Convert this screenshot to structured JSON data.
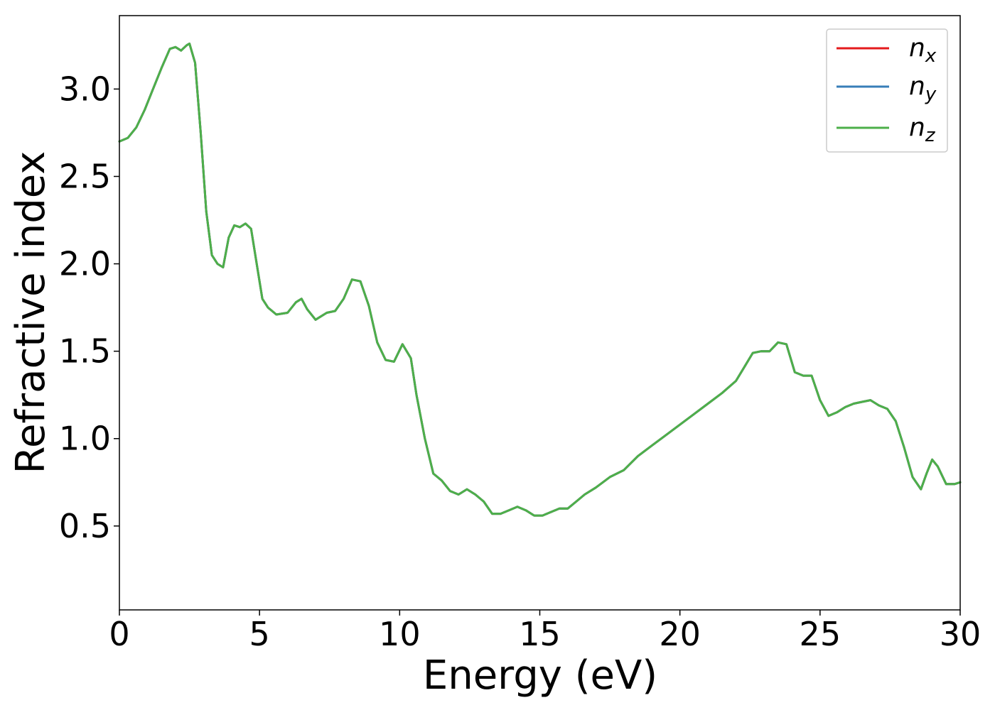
{
  "chart_data": {
    "type": "line",
    "xlabel": "Energy (eV)",
    "ylabel": "Refractive index",
    "xlim": [
      0,
      30
    ],
    "ylim": [
      0.02,
      3.42
    ],
    "xticks": [
      0,
      5,
      10,
      15,
      20,
      25,
      30
    ],
    "xtick_labels": [
      "0",
      "5",
      "10",
      "15",
      "20",
      "25",
      "30"
    ],
    "yticks": [
      0.5,
      1.0,
      1.5,
      2.0,
      2.5,
      3.0
    ],
    "ytick_labels": [
      "0.5",
      "1.0",
      "1.5",
      "2.0",
      "2.5",
      "3.0"
    ],
    "grid": false,
    "legend_position": "top-right",
    "x": [
      0,
      0.3,
      0.6,
      0.9,
      1.2,
      1.5,
      1.8,
      2.0,
      2.2,
      2.4,
      2.5,
      2.7,
      2.9,
      3.1,
      3.3,
      3.5,
      3.7,
      3.9,
      4.1,
      4.3,
      4.5,
      4.7,
      4.9,
      5.1,
      5.3,
      5.6,
      6.0,
      6.3,
      6.5,
      6.7,
      7.0,
      7.4,
      7.7,
      8.0,
      8.3,
      8.6,
      8.9,
      9.2,
      9.5,
      9.8,
      10.1,
      10.4,
      10.6,
      10.9,
      11.2,
      11.5,
      11.8,
      12.1,
      12.4,
      12.7,
      13.0,
      13.3,
      13.6,
      13.9,
      14.2,
      14.5,
      14.8,
      15.1,
      15.4,
      15.7,
      16.0,
      16.3,
      16.6,
      17.0,
      17.5,
      18.0,
      18.5,
      19.0,
      19.5,
      20.0,
      20.5,
      21.0,
      21.5,
      22.0,
      22.3,
      22.6,
      22.9,
      23.2,
      23.5,
      23.8,
      24.1,
      24.4,
      24.7,
      25.0,
      25.3,
      25.6,
      25.9,
      26.2,
      26.5,
      26.8,
      27.1,
      27.4,
      27.7,
      28.0,
      28.3,
      28.6,
      28.8,
      29.0,
      29.2,
      29.5,
      29.8,
      30.0
    ],
    "series": [
      {
        "name": "n",
        "subscript": "x",
        "color": "#e41a1c",
        "values": [
          2.7,
          2.72,
          2.78,
          2.88,
          3.0,
          3.12,
          3.23,
          3.24,
          3.22,
          3.25,
          3.26,
          3.15,
          2.75,
          2.3,
          2.05,
          2.0,
          1.98,
          2.15,
          2.22,
          2.21,
          2.23,
          2.2,
          2.0,
          1.8,
          1.75,
          1.71,
          1.72,
          1.78,
          1.8,
          1.74,
          1.68,
          1.72,
          1.73,
          1.8,
          1.91,
          1.9,
          1.76,
          1.55,
          1.45,
          1.44,
          1.54,
          1.46,
          1.25,
          1.0,
          0.8,
          0.76,
          0.7,
          0.68,
          0.71,
          0.68,
          0.64,
          0.57,
          0.57,
          0.59,
          0.61,
          0.59,
          0.56,
          0.56,
          0.58,
          0.6,
          0.6,
          0.64,
          0.68,
          0.72,
          0.78,
          0.82,
          0.9,
          0.96,
          1.02,
          1.08,
          1.14,
          1.2,
          1.26,
          1.33,
          1.41,
          1.49,
          1.5,
          1.5,
          1.55,
          1.54,
          1.38,
          1.36,
          1.36,
          1.22,
          1.13,
          1.15,
          1.18,
          1.2,
          1.21,
          1.22,
          1.19,
          1.17,
          1.1,
          0.95,
          0.78,
          0.71,
          0.8,
          0.88,
          0.84,
          0.74,
          0.74,
          0.75
        ]
      },
      {
        "name": "n",
        "subscript": "y",
        "color": "#377eb8",
        "values": [
          2.7,
          2.72,
          2.78,
          2.88,
          3.0,
          3.12,
          3.23,
          3.24,
          3.22,
          3.25,
          3.26,
          3.15,
          2.75,
          2.3,
          2.05,
          2.0,
          1.98,
          2.15,
          2.22,
          2.21,
          2.23,
          2.2,
          2.0,
          1.8,
          1.75,
          1.71,
          1.72,
          1.78,
          1.8,
          1.74,
          1.68,
          1.72,
          1.73,
          1.8,
          1.91,
          1.9,
          1.76,
          1.55,
          1.45,
          1.44,
          1.54,
          1.46,
          1.25,
          1.0,
          0.8,
          0.76,
          0.7,
          0.68,
          0.71,
          0.68,
          0.64,
          0.57,
          0.57,
          0.59,
          0.61,
          0.59,
          0.56,
          0.56,
          0.58,
          0.6,
          0.6,
          0.64,
          0.68,
          0.72,
          0.78,
          0.82,
          0.9,
          0.96,
          1.02,
          1.08,
          1.14,
          1.2,
          1.26,
          1.33,
          1.41,
          1.49,
          1.5,
          1.5,
          1.55,
          1.54,
          1.38,
          1.36,
          1.36,
          1.22,
          1.13,
          1.15,
          1.18,
          1.2,
          1.21,
          1.22,
          1.19,
          1.17,
          1.1,
          0.95,
          0.78,
          0.71,
          0.8,
          0.88,
          0.84,
          0.74,
          0.74,
          0.75
        ]
      },
      {
        "name": "n",
        "subscript": "z",
        "color": "#4daf4a",
        "values": [
          2.7,
          2.72,
          2.78,
          2.88,
          3.0,
          3.12,
          3.23,
          3.24,
          3.22,
          3.25,
          3.26,
          3.15,
          2.75,
          2.3,
          2.05,
          2.0,
          1.98,
          2.15,
          2.22,
          2.21,
          2.23,
          2.2,
          2.0,
          1.8,
          1.75,
          1.71,
          1.72,
          1.78,
          1.8,
          1.74,
          1.68,
          1.72,
          1.73,
          1.8,
          1.91,
          1.9,
          1.76,
          1.55,
          1.45,
          1.44,
          1.54,
          1.46,
          1.25,
          1.0,
          0.8,
          0.76,
          0.7,
          0.68,
          0.71,
          0.68,
          0.64,
          0.57,
          0.57,
          0.59,
          0.61,
          0.59,
          0.56,
          0.56,
          0.58,
          0.6,
          0.6,
          0.64,
          0.68,
          0.72,
          0.78,
          0.82,
          0.9,
          0.96,
          1.02,
          1.08,
          1.14,
          1.2,
          1.26,
          1.33,
          1.41,
          1.49,
          1.5,
          1.5,
          1.55,
          1.54,
          1.38,
          1.36,
          1.36,
          1.22,
          1.13,
          1.15,
          1.18,
          1.2,
          1.21,
          1.22,
          1.19,
          1.17,
          1.1,
          0.95,
          0.78,
          0.71,
          0.8,
          0.88,
          0.84,
          0.74,
          0.74,
          0.75
        ]
      }
    ]
  }
}
